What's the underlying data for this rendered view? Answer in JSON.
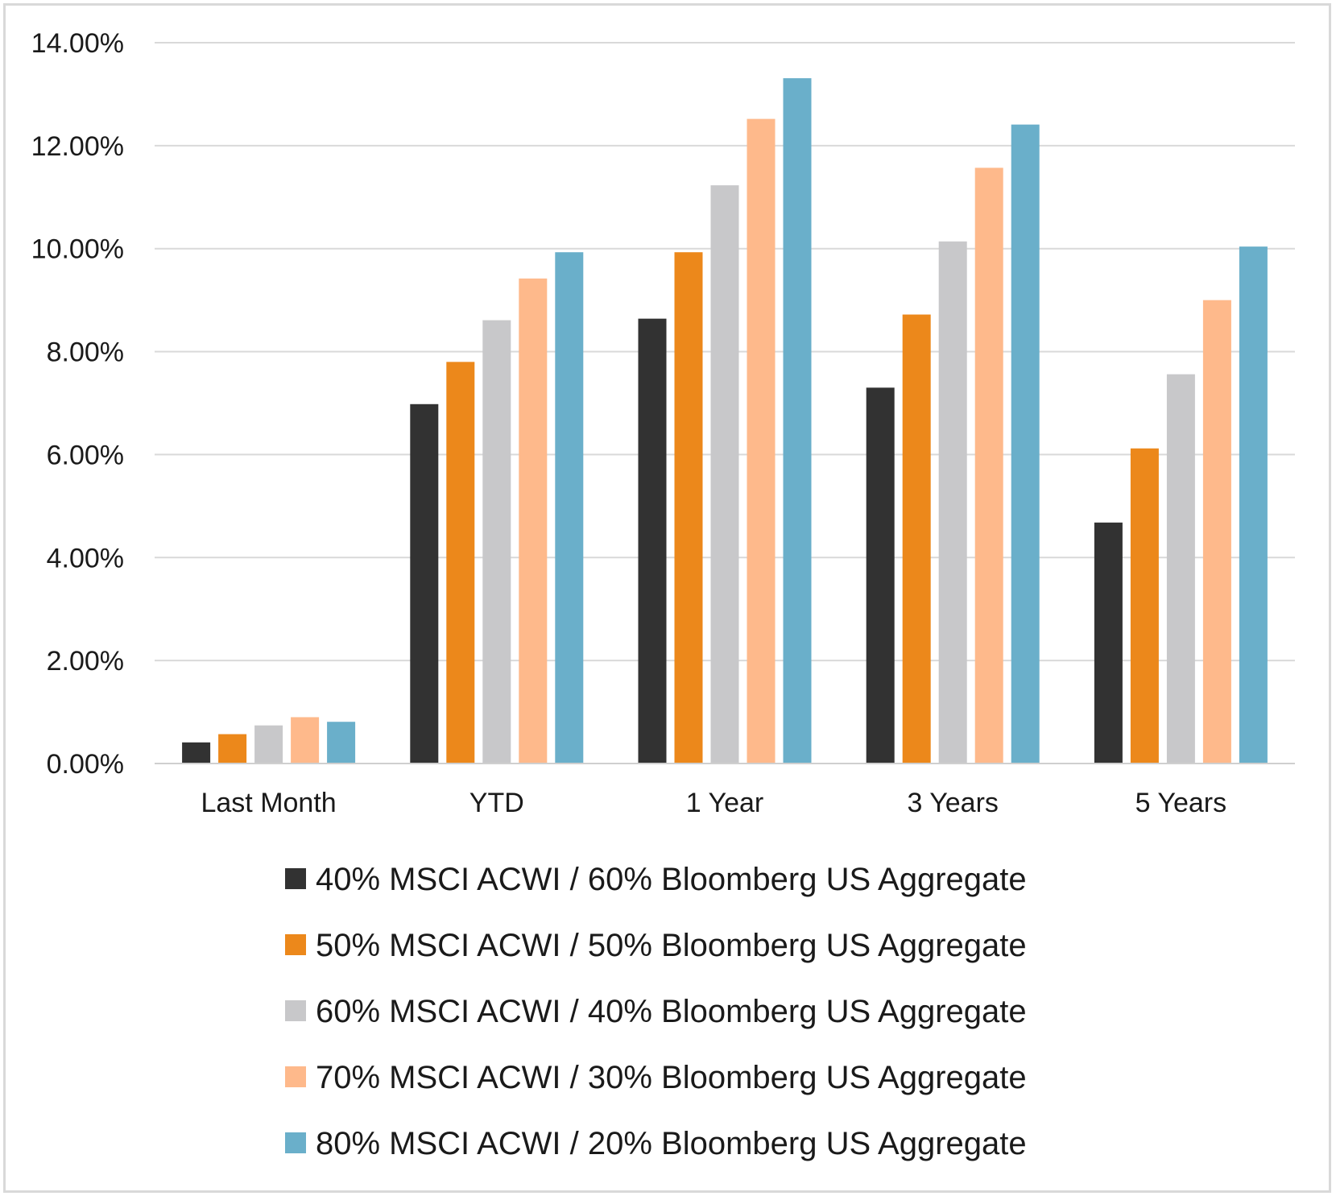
{
  "chart_data": {
    "type": "bar",
    "categories": [
      "Last Month",
      "YTD",
      "1 Year",
      "3 Years",
      "5 Years"
    ],
    "series": [
      {
        "name": "40% MSCI ACWI / 60% Bloomberg US Aggregate",
        "color": "#323232",
        "values": [
          0.41,
          6.98,
          8.64,
          7.3,
          4.68
        ]
      },
      {
        "name": "50% MSCI ACWI / 50% Bloomberg US Aggregate",
        "color": "#ec881b",
        "values": [
          0.57,
          7.8,
          9.93,
          8.72,
          6.12
        ]
      },
      {
        "name": "60% MSCI ACWI / 40% Bloomberg US Aggregate",
        "color": "#c8c8ca",
        "values": [
          0.74,
          8.61,
          11.23,
          10.14,
          7.56
        ]
      },
      {
        "name": "70% MSCI ACWI / 30% Bloomberg US Aggregate",
        "color": "#feb98b",
        "values": [
          0.9,
          9.42,
          12.52,
          11.57,
          9.0
        ]
      },
      {
        "name": "80% MSCI ACWI / 20% Bloomberg US Aggregate",
        "color": "#6aafca",
        "values": [
          0.81,
          9.93,
          13.31,
          12.41,
          10.04
        ]
      }
    ],
    "yticks": [
      "0.00%",
      "2.00%",
      "4.00%",
      "6.00%",
      "8.00%",
      "10.00%",
      "12.00%",
      "14.00%"
    ],
    "ylim": [
      0,
      14
    ],
    "grid": true,
    "legend_position": "bottom"
  }
}
